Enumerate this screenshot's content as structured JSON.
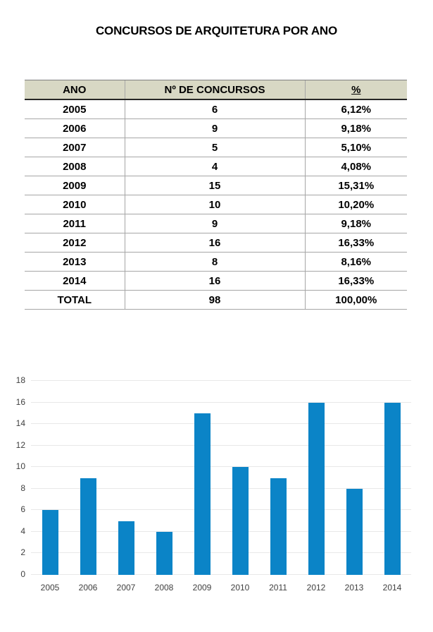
{
  "title": "CONCURSOS DE ARQUITETURA POR ANO",
  "table": {
    "columns": [
      "ANO",
      "Nº DE CONCURSOS",
      "%"
    ],
    "rows": [
      [
        "2005",
        "6",
        "6,12%"
      ],
      [
        "2006",
        "9",
        "9,18%"
      ],
      [
        "2007",
        "5",
        "5,10%"
      ],
      [
        "2008",
        "4",
        "4,08%"
      ],
      [
        "2009",
        "15",
        "15,31%"
      ],
      [
        "2010",
        "10",
        "10,20%"
      ],
      [
        "2011",
        "9",
        "9,18%"
      ],
      [
        "2012",
        "16",
        "16,33%"
      ],
      [
        "2013",
        "8",
        "8,16%"
      ],
      [
        "2014",
        "16",
        "16,33%"
      ],
      [
        "TOTAL",
        "98",
        "100,00%"
      ]
    ]
  },
  "chart_data": {
    "type": "bar",
    "categories": [
      "2005",
      "2006",
      "2007",
      "2008",
      "2009",
      "2010",
      "2011",
      "2012",
      "2013",
      "2014"
    ],
    "values": [
      6,
      9,
      5,
      4,
      15,
      10,
      9,
      16,
      8,
      16
    ],
    "title": "",
    "xlabel": "",
    "ylabel": "",
    "ylim": [
      0,
      18
    ],
    "ytick_step": 2,
    "y_ticks": [
      0,
      2,
      4,
      6,
      8,
      10,
      12,
      14,
      16,
      18
    ],
    "grid": true,
    "legend": false,
    "bar_color": "#0b84c7",
    "gridline_color": "#e8e8e8",
    "axis_text_color": "#3f3f3f"
  },
  "colors": {
    "header_bg": "#d8d8c4",
    "table_border": "#a6a6a6",
    "header_border_bottom": "#262626",
    "bar_blue": "#0b84c7",
    "gridline": "#e8e8e8"
  }
}
